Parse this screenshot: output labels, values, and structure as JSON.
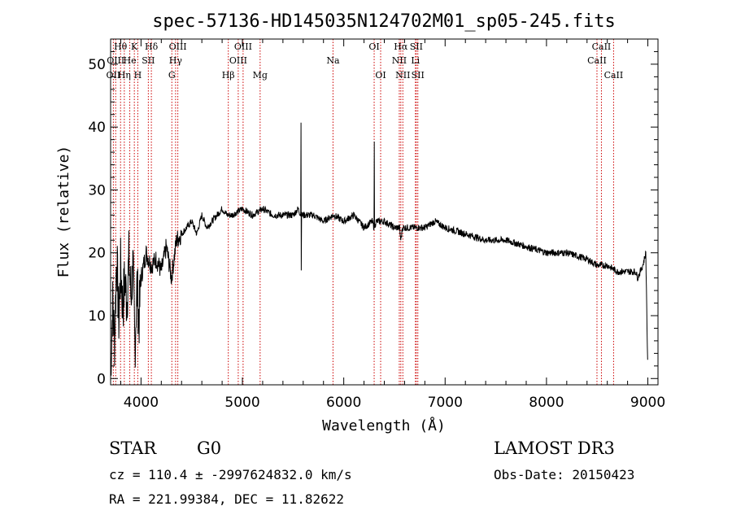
{
  "chart_data": {
    "type": "line",
    "title": "spec-57136-HD145035N124702M01_sp05-245.fits",
    "xlabel": "Wavelength (Å)",
    "ylabel": "Flux (relative)",
    "xlim": [
      3700,
      9100
    ],
    "ylim": [
      -1,
      54
    ],
    "x_ticks": [
      4000,
      5000,
      6000,
      7000,
      8000,
      9000
    ],
    "y_ticks": [
      0,
      10,
      20,
      30,
      40,
      50
    ],
    "grid": false,
    "series": [
      {
        "name": "spectrum",
        "x": [
          3700,
          3720,
          3740,
          3760,
          3780,
          3800,
          3820,
          3840,
          3860,
          3880,
          3900,
          3920,
          3940,
          3960,
          3980,
          4000,
          4050,
          4100,
          4150,
          4200,
          4250,
          4300,
          4350,
          4400,
          4450,
          4500,
          4550,
          4600,
          4650,
          4700,
          4750,
          4800,
          4850,
          4900,
          5000,
          5100,
          5200,
          5300,
          5400,
          5500,
          5550,
          5577,
          5600,
          5700,
          5800,
          5900,
          6000,
          6100,
          6200,
          6280,
          6300,
          6320,
          6400,
          6500,
          6550,
          6563,
          6580,
          6700,
          6800,
          6900,
          7000,
          7200,
          7400,
          7600,
          7800,
          8000,
          8200,
          8400,
          8500,
          8600,
          8700,
          8800,
          8880,
          8900,
          8950,
          8980,
          9000
        ],
        "y": [
          1,
          12,
          6,
          20,
          9,
          18,
          11,
          16,
          12,
          19,
          13,
          18,
          5,
          15,
          9,
          16,
          20,
          18,
          19,
          17,
          21,
          16,
          22,
          23,
          24,
          25,
          23,
          26,
          24,
          25,
          26,
          27,
          26,
          26,
          27,
          26,
          27,
          26,
          26,
          26,
          27,
          26,
          26,
          26,
          25,
          26,
          25,
          26,
          24,
          25,
          24,
          25,
          25,
          24,
          24,
          22,
          24,
          24,
          24,
          25,
          24,
          23,
          22,
          22,
          21,
          20,
          20,
          19,
          18,
          18,
          17,
          17,
          17,
          16,
          18,
          20,
          0.5
        ]
      }
    ],
    "emission_spikes": [
      {
        "x": 5577,
        "peak": 40.7,
        "low": 17.2
      },
      {
        "x": 6300,
        "peak": 37.7,
        "low": 24
      }
    ],
    "line_markers": [
      {
        "wl": 3727,
        "label": "OII",
        "row": 2
      },
      {
        "wl": 3750,
        "label": "OIII",
        "row": 1
      },
      {
        "wl": 3798,
        "label": "Hθ",
        "row": 0
      },
      {
        "wl": 3835,
        "label": "Hη",
        "row": 2
      },
      {
        "wl": 3889,
        "label": "He",
        "row": 1
      },
      {
        "wl": 3934,
        "label": "K",
        "row": 0
      },
      {
        "wl": 3968,
        "label": "H",
        "row": 2
      },
      {
        "wl": 4072,
        "label": "SII",
        "row": 1
      },
      {
        "wl": 4102,
        "label": "Hδ",
        "row": 0
      },
      {
        "wl": 4304,
        "label": "G",
        "row": 2
      },
      {
        "wl": 4341,
        "label": "Hγ",
        "row": 1
      },
      {
        "wl": 4363,
        "label": "OIII",
        "row": 0
      },
      {
        "wl": 4861,
        "label": "Hβ",
        "row": 2
      },
      {
        "wl": 4959,
        "label": "OIII",
        "row": 1
      },
      {
        "wl": 5007,
        "label": "OIII",
        "row": 0
      },
      {
        "wl": 5175,
        "label": "Mg",
        "row": 2
      },
      {
        "wl": 5894,
        "label": "Na",
        "row": 1
      },
      {
        "wl": 6300,
        "label": "OI",
        "row": 0
      },
      {
        "wl": 6364,
        "label": "OI",
        "row": 2
      },
      {
        "wl": 6548,
        "label": "NII",
        "row": 1
      },
      {
        "wl": 6563,
        "label": "Hα",
        "row": 0
      },
      {
        "wl": 6583,
        "label": "NII",
        "row": 2
      },
      {
        "wl": 6707,
        "label": "Li",
        "row": 1
      },
      {
        "wl": 6716,
        "label": "SII",
        "row": 0
      },
      {
        "wl": 6731,
        "label": "SII",
        "row": 2
      },
      {
        "wl": 8498,
        "label": "CaII",
        "row": 1
      },
      {
        "wl": 8542,
        "label": "CaII",
        "row": 0
      },
      {
        "wl": 8662,
        "label": "CaII",
        "row": 2
      }
    ]
  },
  "info": {
    "class": "STAR",
    "subclass": "G0",
    "survey": "LAMOST DR3",
    "cz": "cz = 110.4 ± -2997624832.0 km/s",
    "obs_date": "Obs-Date: 20150423",
    "coords": "RA = 221.99384, DEC =  11.82622"
  },
  "colors": {
    "axis": "#000000",
    "spectrum": "#000000",
    "marker": "#cc0000"
  }
}
